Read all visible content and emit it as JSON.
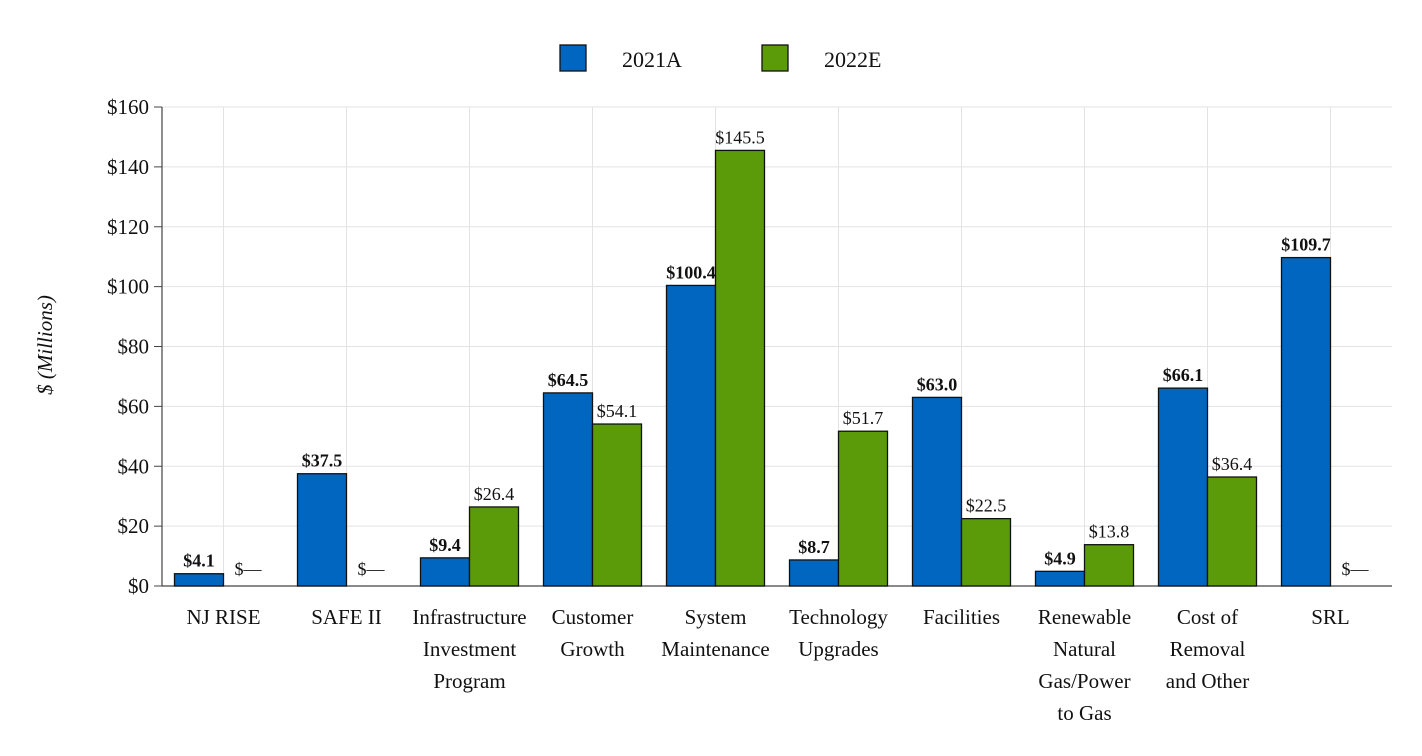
{
  "chart_data": {
    "type": "bar",
    "title": "",
    "xlabel": "",
    "ylabel": "$ (Millions)",
    "ylim": [
      0,
      160
    ],
    "yticks": [
      0,
      20,
      40,
      60,
      80,
      100,
      120,
      140,
      160
    ],
    "ytick_labels": [
      "$0",
      "$20",
      "$40",
      "$60",
      "$80",
      "$100",
      "$120",
      "$140",
      "$160"
    ],
    "grid": true,
    "legend_position": "top-center",
    "categories": [
      [
        "NJ RISE"
      ],
      [
        "SAFE II"
      ],
      [
        "Infrastructure",
        "Investment",
        "Program"
      ],
      [
        "Customer",
        "Growth"
      ],
      [
        "System",
        "Maintenance"
      ],
      [
        "Technology",
        "Upgrades"
      ],
      [
        "Facilities"
      ],
      [
        "Renewable",
        "Natural",
        "Gas/Power",
        "to Gas"
      ],
      [
        "Cost of",
        "Removal",
        "and Other"
      ],
      [
        "SRL"
      ]
    ],
    "series": [
      {
        "name": "2021A",
        "color": "#0066c0",
        "values": [
          4.1,
          37.5,
          9.4,
          64.5,
          100.4,
          8.7,
          63.0,
          4.9,
          66.1,
          109.7
        ],
        "labels": [
          "$4.1",
          "$37.5",
          "$9.4",
          "$64.5",
          "$100.4",
          "$8.7",
          "$63.0",
          "$4.9",
          "$66.1",
          "$109.7"
        ]
      },
      {
        "name": "2022E",
        "color": "#5b9a08",
        "values": [
          0,
          0,
          26.4,
          54.1,
          145.5,
          51.7,
          22.5,
          13.8,
          36.4,
          0
        ],
        "labels": [
          "$—",
          "$—",
          "$26.4",
          "$54.1",
          "$145.5",
          "$51.7",
          "$22.5",
          "$13.8",
          "$36.4",
          "$—"
        ]
      }
    ]
  }
}
